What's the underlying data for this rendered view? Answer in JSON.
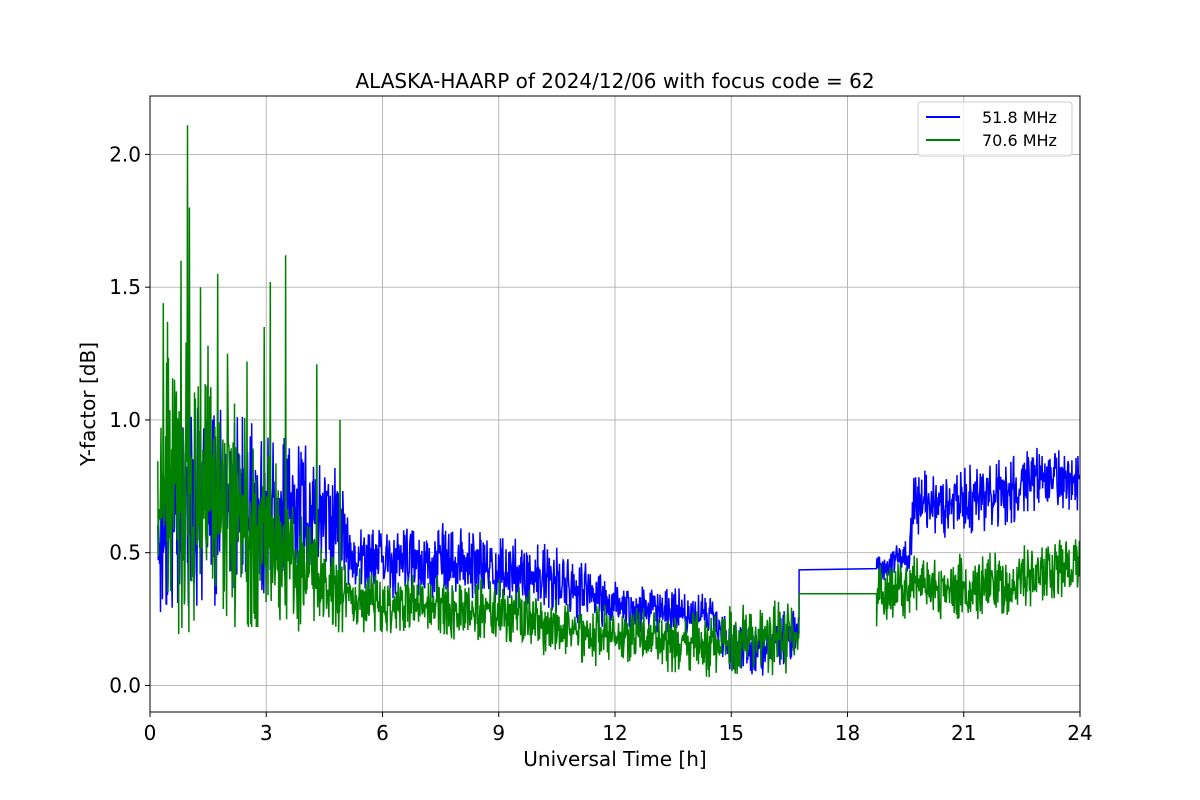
{
  "chart_data": {
    "type": "line",
    "title": "ALASKA-HAARP of 2024/12/06 with focus code = 62",
    "xlabel": "Universal Time [h]",
    "ylabel": "Y-factor [dB]",
    "xlim": [
      0,
      24
    ],
    "ylim": [
      -0.1,
      2.22
    ],
    "xticks": [
      0,
      3,
      6,
      9,
      12,
      15,
      18,
      21,
      24
    ],
    "xtick_labels": [
      "0",
      "3",
      "6",
      "9",
      "12",
      "15",
      "18",
      "21",
      "24"
    ],
    "yticks": [
      0.0,
      0.5,
      1.0,
      1.5,
      2.0
    ],
    "ytick_labels": [
      "0.0",
      "0.5",
      "1.0",
      "1.5",
      "2.0"
    ],
    "grid": true,
    "legend_position": "top-right",
    "series": [
      {
        "name": "51.8 MHz",
        "color": "#0000ff",
        "gap": [
          16.75,
          18.75
        ],
        "envelope": [
          {
            "x": 0.2,
            "low": 0.2,
            "high": 0.95
          },
          {
            "x": 1.0,
            "low": 0.3,
            "high": 1.05
          },
          {
            "x": 2.0,
            "low": 0.3,
            "high": 1.05
          },
          {
            "x": 3.0,
            "low": 0.35,
            "high": 0.95
          },
          {
            "x": 4.0,
            "low": 0.4,
            "high": 0.92
          },
          {
            "x": 4.8,
            "low": 0.4,
            "high": 0.85
          },
          {
            "x": 5.3,
            "low": 0.35,
            "high": 0.6
          },
          {
            "x": 6.0,
            "low": 0.33,
            "high": 0.6
          },
          {
            "x": 7.5,
            "low": 0.32,
            "high": 0.62
          },
          {
            "x": 9.0,
            "low": 0.3,
            "high": 0.58
          },
          {
            "x": 10.5,
            "low": 0.25,
            "high": 0.52
          },
          {
            "x": 12.0,
            "low": 0.2,
            "high": 0.4
          },
          {
            "x": 13.5,
            "low": 0.2,
            "high": 0.37
          },
          {
            "x": 14.5,
            "low": 0.18,
            "high": 0.34
          },
          {
            "x": 15.0,
            "low": 0.05,
            "high": 0.27
          },
          {
            "x": 15.8,
            "low": 0.02,
            "high": 0.25
          },
          {
            "x": 16.7,
            "low": 0.1,
            "high": 0.3
          },
          {
            "x": 18.75,
            "low": 0.38,
            "high": 0.5
          },
          {
            "x": 19.6,
            "low": 0.42,
            "high": 0.55
          },
          {
            "x": 19.7,
            "low": 0.55,
            "high": 0.8
          },
          {
            "x": 21.0,
            "low": 0.56,
            "high": 0.84
          },
          {
            "x": 22.0,
            "low": 0.6,
            "high": 0.85
          },
          {
            "x": 23.0,
            "low": 0.65,
            "high": 0.9
          },
          {
            "x": 24.0,
            "low": 0.66,
            "high": 0.9
          }
        ],
        "gap_levels": [
          0.435,
          0.44
        ]
      },
      {
        "name": "70.6 MHz",
        "color": "#008000",
        "gap": [
          16.75,
          18.75
        ],
        "envelope": [
          {
            "x": 0.2,
            "low": 0.18,
            "high": 1.2
          },
          {
            "x": 1.0,
            "low": 0.2,
            "high": 1.3
          },
          {
            "x": 2.0,
            "low": 0.22,
            "high": 1.1
          },
          {
            "x": 3.0,
            "low": 0.22,
            "high": 0.9
          },
          {
            "x": 4.0,
            "low": 0.2,
            "high": 0.65
          },
          {
            "x": 5.0,
            "low": 0.2,
            "high": 0.5
          },
          {
            "x": 6.0,
            "low": 0.2,
            "high": 0.42
          },
          {
            "x": 7.5,
            "low": 0.18,
            "high": 0.42
          },
          {
            "x": 9.0,
            "low": 0.15,
            "high": 0.4
          },
          {
            "x": 10.5,
            "low": 0.1,
            "high": 0.33
          },
          {
            "x": 12.0,
            "low": 0.06,
            "high": 0.3
          },
          {
            "x": 13.5,
            "low": 0.05,
            "high": 0.28
          },
          {
            "x": 15.0,
            "low": 0.02,
            "high": 0.3
          },
          {
            "x": 16.7,
            "low": 0.05,
            "high": 0.33
          },
          {
            "x": 18.75,
            "low": 0.2,
            "high": 0.45
          },
          {
            "x": 19.7,
            "low": 0.25,
            "high": 0.5
          },
          {
            "x": 21.0,
            "low": 0.25,
            "high": 0.5
          },
          {
            "x": 22.0,
            "low": 0.25,
            "high": 0.5
          },
          {
            "x": 23.0,
            "low": 0.3,
            "high": 0.55
          },
          {
            "x": 24.0,
            "low": 0.33,
            "high": 0.57
          }
        ],
        "spikes": [
          {
            "x": 0.35,
            "y": 1.44
          },
          {
            "x": 0.45,
            "y": 1.37
          },
          {
            "x": 0.8,
            "y": 1.6
          },
          {
            "x": 0.97,
            "y": 2.11
          },
          {
            "x": 1.02,
            "y": 1.8
          },
          {
            "x": 1.3,
            "y": 1.5
          },
          {
            "x": 1.5,
            "y": 1.28
          },
          {
            "x": 1.75,
            "y": 1.55
          },
          {
            "x": 2.0,
            "y": 1.25
          },
          {
            "x": 2.5,
            "y": 1.22
          },
          {
            "x": 2.95,
            "y": 1.35
          },
          {
            "x": 3.1,
            "y": 1.52
          },
          {
            "x": 3.5,
            "y": 1.62
          },
          {
            "x": 4.3,
            "y": 1.21
          },
          {
            "x": 4.9,
            "y": 1.0
          }
        ],
        "gap_levels": [
          0.345,
          0.345
        ]
      }
    ]
  }
}
